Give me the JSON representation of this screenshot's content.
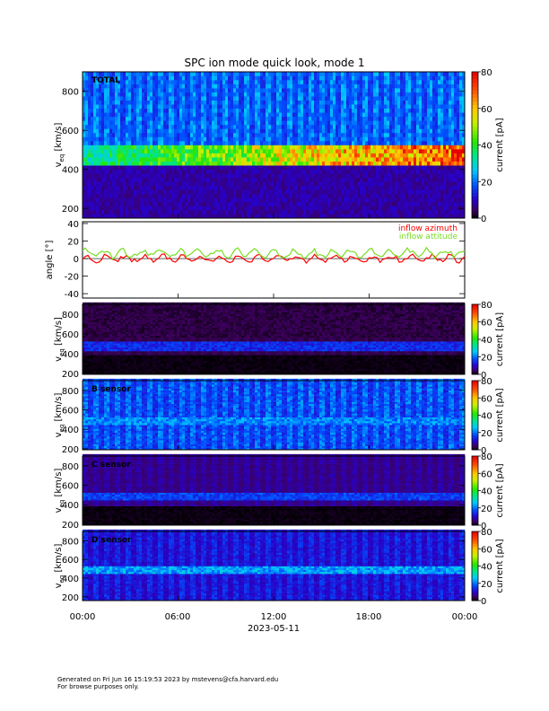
{
  "title": "SPC ion mode quick look, mode 1",
  "footer": {
    "line1": "Generated on Fri Jun 16 15:19:53 2023 by mstevens@cfa.harvard.edu",
    "line2": "For browse purposes only."
  },
  "chart_data": [
    {
      "type": "heatmap",
      "panel": "total",
      "label": "TOTAL",
      "ylabel": "v",
      "ylabel_sub": "eq",
      "ylabel_unit": "[km/s]",
      "ylim": [
        150,
        900
      ],
      "yticks": [
        200,
        400,
        600,
        800
      ],
      "colorbar": {
        "label": "current [pA]",
        "range": [
          0,
          80
        ],
        "ticks": [
          0,
          20,
          40,
          60,
          80
        ]
      },
      "features": {
        "background_level_pA": 22,
        "beam_band_km_s": [
          400,
          520
        ],
        "beam_peak_pA": 80,
        "low_band_km_s": [
          150,
          400
        ],
        "low_band_level_pA": 8
      }
    },
    {
      "type": "line",
      "panel": "angle",
      "ylabel": "angle [°]",
      "ylim": [
        -45,
        42
      ],
      "yticks": [
        -40,
        -20,
        0,
        20,
        40
      ],
      "series": [
        {
          "name": "inflow azimuth",
          "color": "#ff0000",
          "mean": 0,
          "amplitude": 5
        },
        {
          "name": "inflow attitude",
          "color": "#77dd22",
          "mean": 6,
          "amplitude": 6
        }
      ]
    },
    {
      "type": "heatmap",
      "panel": "sensor_a",
      "label": "",
      "ylabel": "v",
      "ylabel_sub": "eq",
      "ylabel_unit": "[km/s]",
      "ylim": [
        190,
        900
      ],
      "yticks": [
        200,
        400,
        600,
        800
      ],
      "colorbar": {
        "label": "current [pA]",
        "range": [
          0,
          80
        ],
        "ticks": [
          0,
          20,
          40,
          60,
          80
        ]
      },
      "features": {
        "background_level_pA": 4,
        "beam_band_km_s": [
          420,
          520
        ],
        "beam_level_pA": 16
      }
    },
    {
      "type": "heatmap",
      "panel": "sensor_b",
      "label": "B sensor",
      "ylabel": "v",
      "ylabel_sub": "eq",
      "ylabel_unit": "[km/s]",
      "ylim": [
        190,
        900
      ],
      "yticks": [
        200,
        400,
        600,
        800
      ],
      "colorbar": {
        "label": "current [pA]",
        "range": [
          0,
          80
        ],
        "ticks": [
          0,
          20,
          40,
          60,
          80
        ]
      },
      "features": {
        "background_level_pA": 20,
        "beam_band_km_s": [
          430,
          520
        ],
        "beam_level_pA": 24
      }
    },
    {
      "type": "heatmap",
      "panel": "sensor_c",
      "label": "C sensor",
      "ylabel": "v",
      "ylabel_sub": "eq",
      "ylabel_unit": "[km/s]",
      "ylim": [
        190,
        900
      ],
      "yticks": [
        200,
        400,
        600,
        800
      ],
      "colorbar": {
        "label": "current [pA]",
        "range": [
          0,
          80
        ],
        "ticks": [
          0,
          20,
          40,
          60,
          80
        ]
      },
      "features": {
        "background_level_pA": 8,
        "beam_band_km_s": [
          430,
          520
        ],
        "beam_level_pA": 18
      }
    },
    {
      "type": "heatmap",
      "panel": "sensor_d",
      "label": "D sensor",
      "ylabel": "v",
      "ylabel_sub": "eq",
      "ylabel_unit": "[km/s]",
      "ylim": [
        160,
        900
      ],
      "yticks": [
        200,
        400,
        600,
        800
      ],
      "colorbar": {
        "label": "current [pA]",
        "range": [
          0,
          80
        ],
        "ticks": [
          0,
          20,
          40,
          60,
          80
        ]
      },
      "features": {
        "background_level_pA": 14,
        "beam_band_km_s": [
          430,
          520
        ],
        "beam_level_pA": 26
      }
    }
  ],
  "x_axis": {
    "tick_labels": [
      "00:00",
      "06:00",
      "12:00",
      "18:00",
      "00:00"
    ],
    "date_label": "2023-05-11"
  }
}
